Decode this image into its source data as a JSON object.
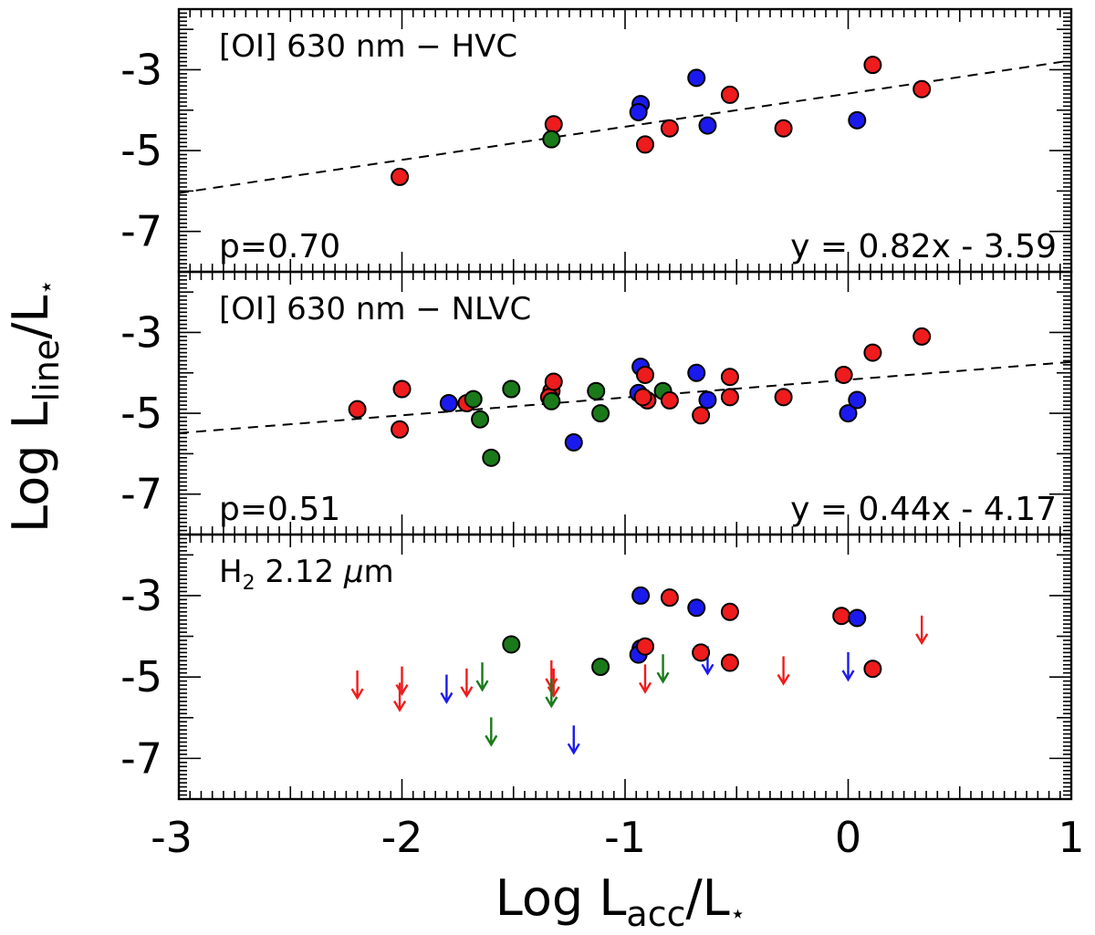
{
  "chart_data": {
    "type": "scatter",
    "x_axis": {
      "label_main": "Log L",
      "label_sub": "acc",
      "label_tail": "/L",
      "label_star": "⋆",
      "range": [
        -3,
        1
      ],
      "ticks": [
        -3,
        -2,
        -1,
        0,
        1
      ],
      "tick_labels": [
        "-3",
        "-2",
        "-1",
        "0",
        "1"
      ]
    },
    "y_axis": {
      "label_main": "Log L",
      "label_sub": "line",
      "label_tail": "/L",
      "label_star": "⋆",
      "range": [
        -8,
        -1.5
      ],
      "ticks": [
        -7,
        -5,
        -3
      ],
      "tick_labels": [
        "-7",
        "-5",
        "-3"
      ]
    },
    "colors": {
      "red": "#ee1c1c",
      "blue": "#1a1aee",
      "green": "#1a7a1a"
    },
    "panels": [
      {
        "title": "[OI] 630 nm − HVC",
        "pvalue": "p=0.70",
        "fit_label": "y = 0.82x - 3.59",
        "fit": {
          "slope": 0.82,
          "intercept": -3.59
        },
        "points": [
          {
            "x": -2.01,
            "y": -5.65,
            "c": "red"
          },
          {
            "x": -1.32,
            "y": -4.35,
            "c": "red"
          },
          {
            "x": -1.33,
            "y": -4.72,
            "c": "green"
          },
          {
            "x": -0.93,
            "y": -3.85,
            "c": "blue"
          },
          {
            "x": -0.94,
            "y": -4.05,
            "c": "blue"
          },
          {
            "x": -0.91,
            "y": -4.85,
            "c": "red"
          },
          {
            "x": -0.8,
            "y": -4.45,
            "c": "red"
          },
          {
            "x": -0.68,
            "y": -3.2,
            "c": "blue"
          },
          {
            "x": -0.63,
            "y": -4.38,
            "c": "blue"
          },
          {
            "x": -0.53,
            "y": -3.62,
            "c": "red"
          },
          {
            "x": -0.29,
            "y": -4.45,
            "c": "red"
          },
          {
            "x": 0.04,
            "y": -4.25,
            "c": "blue"
          },
          {
            "x": 0.11,
            "y": -2.88,
            "c": "red"
          },
          {
            "x": 0.33,
            "y": -3.48,
            "c": "red"
          }
        ],
        "upper_limits": []
      },
      {
        "title": "[OI] 630 nm − NLVC",
        "pvalue": "p=0.51",
        "fit_label": "y = 0.44x - 4.17",
        "fit": {
          "slope": 0.44,
          "intercept": -4.17
        },
        "points": [
          {
            "x": -2.2,
            "y": -4.9,
            "c": "red"
          },
          {
            "x": -2.0,
            "y": -4.4,
            "c": "red"
          },
          {
            "x": -2.01,
            "y": -5.4,
            "c": "red"
          },
          {
            "x": -1.79,
            "y": -4.75,
            "c": "blue"
          },
          {
            "x": -1.71,
            "y": -4.75,
            "c": "red"
          },
          {
            "x": -1.68,
            "y": -4.65,
            "c": "green"
          },
          {
            "x": -1.65,
            "y": -5.15,
            "c": "green"
          },
          {
            "x": -1.6,
            "y": -6.1,
            "c": "green"
          },
          {
            "x": -1.51,
            "y": -4.4,
            "c": "green"
          },
          {
            "x": -1.33,
            "y": -4.45,
            "c": "red"
          },
          {
            "x": -1.34,
            "y": -4.6,
            "c": "red"
          },
          {
            "x": -1.32,
            "y": -4.22,
            "c": "red"
          },
          {
            "x": -1.33,
            "y": -4.7,
            "c": "green"
          },
          {
            "x": -1.23,
            "y": -5.72,
            "c": "blue"
          },
          {
            "x": -1.13,
            "y": -4.45,
            "c": "green"
          },
          {
            "x": -1.11,
            "y": -5.0,
            "c": "green"
          },
          {
            "x": -0.93,
            "y": -3.85,
            "c": "blue"
          },
          {
            "x": -0.94,
            "y": -4.5,
            "c": "blue"
          },
          {
            "x": -0.91,
            "y": -4.05,
            "c": "red"
          },
          {
            "x": -0.9,
            "y": -4.68,
            "c": "red"
          },
          {
            "x": -0.92,
            "y": -4.6,
            "c": "red"
          },
          {
            "x": -0.83,
            "y": -4.45,
            "c": "green"
          },
          {
            "x": -0.8,
            "y": -4.68,
            "c": "red"
          },
          {
            "x": -0.68,
            "y": -4.0,
            "c": "blue"
          },
          {
            "x": -0.66,
            "y": -5.05,
            "c": "red"
          },
          {
            "x": -0.63,
            "y": -4.67,
            "c": "blue"
          },
          {
            "x": -0.53,
            "y": -4.1,
            "c": "red"
          },
          {
            "x": -0.53,
            "y": -4.6,
            "c": "red"
          },
          {
            "x": -0.29,
            "y": -4.6,
            "c": "red"
          },
          {
            "x": -0.02,
            "y": -4.05,
            "c": "red"
          },
          {
            "x": 0.0,
            "y": -5.0,
            "c": "blue"
          },
          {
            "x": 0.04,
            "y": -4.67,
            "c": "blue"
          },
          {
            "x": 0.11,
            "y": -3.5,
            "c": "red"
          },
          {
            "x": 0.33,
            "y": -3.1,
            "c": "red"
          }
        ],
        "upper_limits": []
      },
      {
        "title": "H",
        "title_sub": "2",
        "title_tail": " 2.12 ",
        "title_mu": "μ",
        "title_unit": "m",
        "points": [
          {
            "x": -1.51,
            "y": -4.2,
            "c": "green"
          },
          {
            "x": -1.11,
            "y": -4.75,
            "c": "green"
          },
          {
            "x": -0.93,
            "y": -3.0,
            "c": "blue"
          },
          {
            "x": -0.93,
            "y": -4.3,
            "c": "blue"
          },
          {
            "x": -0.94,
            "y": -4.45,
            "c": "blue"
          },
          {
            "x": -0.91,
            "y": -4.25,
            "c": "red"
          },
          {
            "x": -0.8,
            "y": -3.05,
            "c": "red"
          },
          {
            "x": -0.68,
            "y": -3.3,
            "c": "blue"
          },
          {
            "x": -0.66,
            "y": -4.4,
            "c": "red"
          },
          {
            "x": -0.53,
            "y": -3.4,
            "c": "red"
          },
          {
            "x": -0.53,
            "y": -4.65,
            "c": "red"
          },
          {
            "x": -0.03,
            "y": -3.5,
            "c": "red"
          },
          {
            "x": 0.04,
            "y": -3.55,
            "c": "blue"
          },
          {
            "x": 0.11,
            "y": -4.8,
            "c": "red"
          }
        ],
        "upper_limits": [
          {
            "x": -2.2,
            "y": -5.2,
            "c": "red"
          },
          {
            "x": -2.0,
            "y": -5.1,
            "c": "red"
          },
          {
            "x": -2.01,
            "y": -5.5,
            "c": "red"
          },
          {
            "x": -1.8,
            "y": -5.3,
            "c": "blue"
          },
          {
            "x": -1.71,
            "y": -5.15,
            "c": "red"
          },
          {
            "x": -1.64,
            "y": -5.0,
            "c": "green"
          },
          {
            "x": -1.6,
            "y": -6.35,
            "c": "green"
          },
          {
            "x": -1.33,
            "y": -4.95,
            "c": "red"
          },
          {
            "x": -1.32,
            "y": -5.15,
            "c": "red"
          },
          {
            "x": -1.33,
            "y": -5.4,
            "c": "green"
          },
          {
            "x": -1.23,
            "y": -6.55,
            "c": "blue"
          },
          {
            "x": -0.91,
            "y": -5.05,
            "c": "red"
          },
          {
            "x": -0.83,
            "y": -4.8,
            "c": "green"
          },
          {
            "x": -0.63,
            "y": -4.6,
            "c": "blue"
          },
          {
            "x": -0.29,
            "y": -4.85,
            "c": "red"
          },
          {
            "x": 0.0,
            "y": -4.75,
            "c": "blue"
          },
          {
            "x": 0.33,
            "y": -3.85,
            "c": "red"
          }
        ]
      }
    ]
  }
}
